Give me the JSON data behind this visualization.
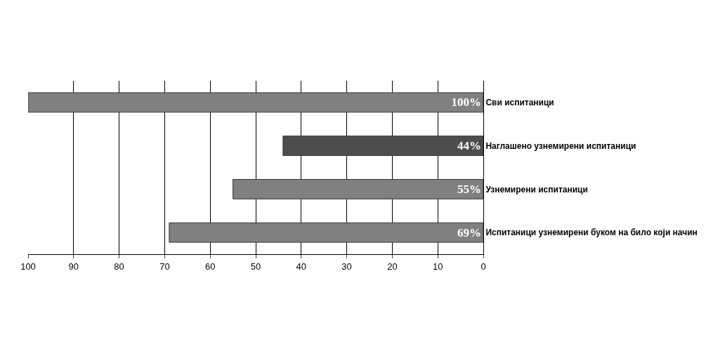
{
  "chart_data": {
    "type": "bar",
    "orientation": "horizontal",
    "categories": [
      "Сви испитаници",
      "Наглашено узнемирени испитаници",
      "Узнемирени испитаници",
      "Испитаници узнемирени буком на било који начин"
    ],
    "values": [
      100,
      44,
      55,
      69
    ],
    "value_labels": [
      "100%",
      "44%",
      "55%",
      "69%"
    ],
    "colors": [
      "#808080",
      "#4d4d4d",
      "#808080",
      "#808080"
    ],
    "xlim": [
      100,
      0
    ],
    "xticks": [
      0,
      10,
      20,
      30,
      40,
      50,
      60,
      70,
      80,
      90,
      100
    ],
    "grid": "x",
    "legend": false
  }
}
